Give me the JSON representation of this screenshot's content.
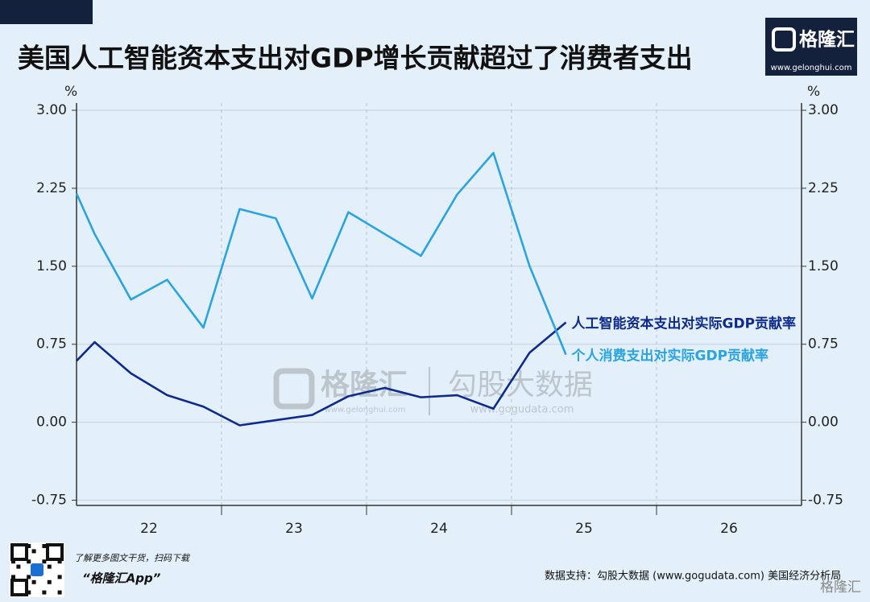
{
  "header": {
    "title": "美国人工智能资本支出对GDP增长贡献超过了消费者支出",
    "logo": "格隆汇",
    "logo_url": "www.gelonghui.com"
  },
  "chart_data": {
    "type": "line",
    "y_unit": "%",
    "y2_unit": "%",
    "x": [
      22.0,
      22.125,
      22.375,
      22.625,
      22.875,
      23.125,
      23.375,
      23.625,
      23.875,
      24.125,
      24.375,
      24.625,
      24.875,
      25.125,
      25.375
    ],
    "xlim": [
      22,
      27
    ],
    "xticks": [
      {
        "value": 22.5,
        "label": "22"
      },
      {
        "value": 23.5,
        "label": "23"
      },
      {
        "value": 24.5,
        "label": "24"
      },
      {
        "value": 25.5,
        "label": "25"
      },
      {
        "value": 26.5,
        "label": "26"
      }
    ],
    "xgrid": [
      23,
      24,
      25,
      26
    ],
    "ylim": [
      -0.8,
      3.07
    ],
    "yticks": [
      {
        "value": 3.0,
        "label": "3.00"
      },
      {
        "value": 2.25,
        "label": "2.25"
      },
      {
        "value": 1.5,
        "label": "1.50"
      },
      {
        "value": 0.75,
        "label": "0.75"
      },
      {
        "value": 0,
        "label": "0.00"
      },
      {
        "value": -0.75,
        "label": "-0.75"
      }
    ],
    "y2lim": [
      -0.8,
      3.07
    ],
    "y2ticks": [
      {
        "value": 3.0,
        "label": "3.00"
      },
      {
        "value": 2.25,
        "label": "2.25"
      },
      {
        "value": 1.5,
        "label": "1.50"
      },
      {
        "value": 0.75,
        "label": "0.75"
      },
      {
        "value": 0,
        "label": "0.00"
      },
      {
        "value": -0.75,
        "label": "-0.75"
      }
    ],
    "grid": true,
    "series": [
      {
        "name": "人工智能资本支出对实际GDP贡献率",
        "color": "#0d2a8c",
        "values": [
          0.59,
          0.77,
          0.47,
          0.26,
          0.15,
          -0.03,
          0.02,
          0.07,
          0.25,
          0.33,
          0.24,
          0.26,
          0.13,
          0.67,
          0.96
        ]
      },
      {
        "name": "个人消费支出对实际GDP贡献率",
        "color": "#2aa4e0",
        "values": [
          2.2,
          1.81,
          1.18,
          1.37,
          0.91,
          2.05,
          1.96,
          1.19,
          2.02,
          1.81,
          1.6,
          2.19,
          2.59,
          1.5,
          0.65
        ]
      }
    ]
  },
  "watermark": {
    "brand": "格隆汇",
    "brand_url": "www.gelonghui.com",
    "data": "勾股大数据",
    "data_url": "www.gogudata.com"
  },
  "footer": {
    "promo": "了解更多图文干货，扫码下载",
    "app": "“格隆汇App”",
    "source": "数据支持：勾股大数据 (www.gogudata.com) 美国经济分析局",
    "logo": "格隆汇"
  }
}
